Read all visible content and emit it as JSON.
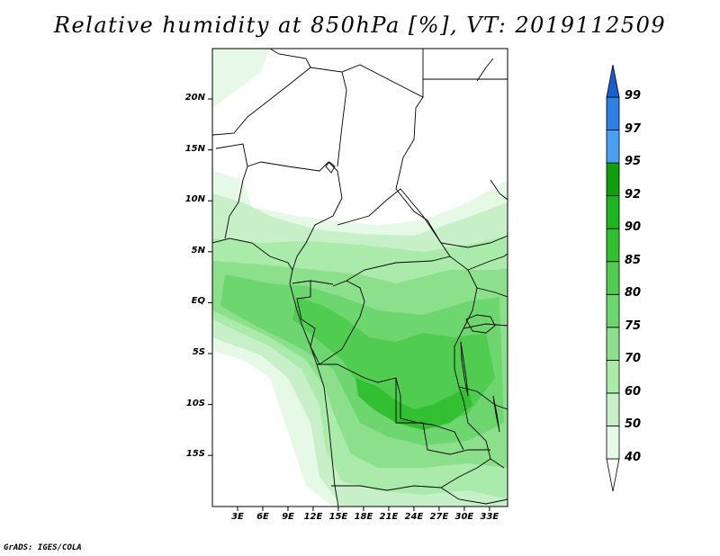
{
  "title": "Relative humidity at 850hPa [%], VT: 2019112509",
  "credit": "GrADS: IGES/COLA",
  "map": {
    "lat_ticks": [
      {
        "value": 20,
        "label": "20N"
      },
      {
        "value": 15,
        "label": "15N"
      },
      {
        "value": 10,
        "label": "10N"
      },
      {
        "value": 5,
        "label": "5N"
      },
      {
        "value": 0,
        "label": "EQ"
      },
      {
        "value": -5,
        "label": "5S"
      },
      {
        "value": -10,
        "label": "10S"
      },
      {
        "value": -15,
        "label": "15S"
      }
    ],
    "lon_ticks": [
      {
        "value": 3,
        "label": "3E"
      },
      {
        "value": 6,
        "label": "6E"
      },
      {
        "value": 9,
        "label": "9E"
      },
      {
        "value": 12,
        "label": "12E"
      },
      {
        "value": 15,
        "label": "15E"
      },
      {
        "value": 18,
        "label": "18E"
      },
      {
        "value": 21,
        "label": "21E"
      },
      {
        "value": 24,
        "label": "24E"
      },
      {
        "value": 27,
        "label": "27E"
      },
      {
        "value": 30,
        "label": "30E"
      },
      {
        "value": 33,
        "label": "33E"
      }
    ]
  },
  "colorbar": {
    "levels": [
      "40",
      "50",
      "60",
      "70",
      "75",
      "80",
      "85",
      "90",
      "92",
      "95",
      "97",
      "99"
    ],
    "colors": [
      "#ffffff",
      "#e6f8e6",
      "#c8f0c8",
      "#aaeaaa",
      "#8ce08c",
      "#6ed66e",
      "#50cc50",
      "#32c032",
      "#1eb41e",
      "#0e9e0e",
      "#4aa0f0",
      "#2f80e0",
      "#1a5ed0"
    ]
  }
}
